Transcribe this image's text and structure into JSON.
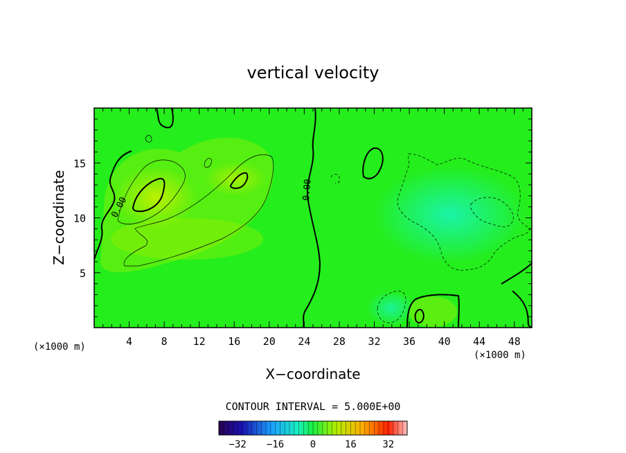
{
  "chart_data": {
    "type": "heatmap",
    "title": "vertical velocity",
    "xlabel": "X−coordinate",
    "ylabel": "Z−coordinate",
    "x_unit_left": "(×1000 m)",
    "x_unit_right": "(×1000 m)",
    "xlim": [
      0,
      50
    ],
    "ylim": [
      0,
      20
    ],
    "x_ticks": [
      4,
      8,
      12,
      16,
      20,
      24,
      28,
      32,
      36,
      40,
      44,
      48
    ],
    "y_ticks": [
      5,
      10,
      15
    ],
    "contour_interval_label": "CONTOUR INTERVAL = 5.000E+00",
    "contour_labels": [
      "0.00",
      "0.00"
    ],
    "colorbar": {
      "range": [
        -40,
        40
      ],
      "ticks": [
        -32,
        -16,
        0,
        16,
        32
      ],
      "colormap": "rainbow"
    },
    "colors": {
      "background_field": "#22ee22",
      "positive_region": "#a8f000",
      "negative_region": "#33f49a"
    },
    "features": [
      {
        "kind": "zero_contour",
        "description": "left boundary near x=1-9"
      },
      {
        "kind": "positive_max",
        "x": 7,
        "z": 12,
        "approx_value": 10
      },
      {
        "kind": "positive_max",
        "x": 16.5,
        "z": 13,
        "approx_value": 10
      },
      {
        "kind": "positive_max",
        "x": 31.5,
        "z": 15,
        "approx_value": 5
      },
      {
        "kind": "negative_min",
        "x": 42,
        "z": 10,
        "approx_value": -5
      },
      {
        "kind": "negative_min",
        "x": 34,
        "z": 2,
        "approx_value": -5
      },
      {
        "kind": "positive_max",
        "x": 37,
        "z": 1.2,
        "approx_value": 5
      }
    ]
  }
}
